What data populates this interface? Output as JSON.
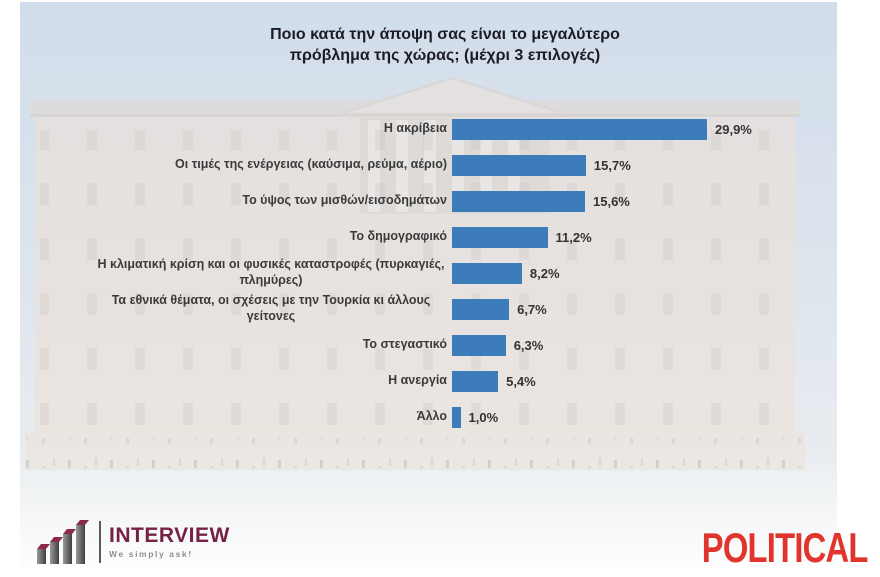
{
  "chart_data": {
    "type": "bar",
    "orientation": "horizontal",
    "title": "Ποιο κατά την άποψη σας είναι το μεγαλύτερο πρόβλημα της χώρας; (μέχρι 3 επιλογές)",
    "title_lines": [
      "Ποιο κατά την άποψη σας είναι το μεγαλύτερο",
      "πρόβλημα της χώρας; (μέχρι 3 επιλογές)"
    ],
    "categories": [
      "Η ακρίβεια",
      "Οι τιμές της ενέργειας (καύσιμα, ρεύμα, αέριο)",
      "Το ύψος των μισθών/εισοδημάτων",
      "Το δημογραφικό",
      "Η κλιματική κρίση και οι φυσικές καταστροφές (πυρκαγιές, πλημύρες)",
      "Τα εθνικά θέματα, οι σχέσεις με την Τουρκία κι άλλους γείτονες",
      "Το στεγαστικό",
      "Η ανεργία",
      "Άλλο"
    ],
    "values": [
      29.9,
      15.7,
      15.6,
      11.2,
      8.2,
      6.7,
      6.3,
      5.4,
      1.0
    ],
    "value_labels": [
      "29,9%",
      "15,7%",
      "15,6%",
      "11,2%",
      "8,2%",
      "6,7%",
      "6,3%",
      "5,4%",
      "1,0%"
    ],
    "xlim": [
      0,
      30
    ],
    "bar_color": "#3c7cba",
    "grid": false,
    "legend": false
  },
  "background": {
    "sky_color": "#c9d7e8",
    "building_color": "#eadcd0"
  },
  "footer": {
    "interview": {
      "brand": "INTERVIEW",
      "tagline": "We simply ask!",
      "brand_color": "#752243"
    },
    "political": {
      "brand": "POLITICAL",
      "brand_color": "#e1342c"
    }
  }
}
